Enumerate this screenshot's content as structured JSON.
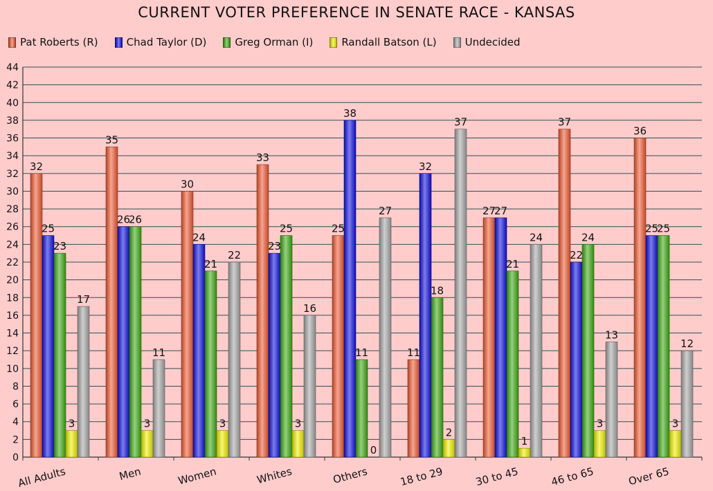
{
  "chart_data": {
    "type": "bar",
    "title": "CURRENT VOTER PREFERENCE IN SENATE RACE - KANSAS",
    "xlabel": "",
    "ylabel": "",
    "ylim": [
      0,
      44
    ],
    "yticks": [
      0,
      2,
      4,
      6,
      8,
      10,
      12,
      14,
      16,
      18,
      20,
      22,
      24,
      26,
      28,
      30,
      32,
      34,
      36,
      38,
      40,
      42,
      44
    ],
    "grid": true,
    "legend_position": "top",
    "categories": [
      "All Adults",
      "Men",
      "Women",
      "Whites",
      "Others",
      "18 to 29",
      "30 to 45",
      "46 to 65",
      "Over 65"
    ],
    "series": [
      {
        "name": "Pat Roberts (R)",
        "color": "#f05a32",
        "values": [
          32,
          35,
          30,
          33,
          25,
          11,
          27,
          37,
          36
        ]
      },
      {
        "name": "Chad Taylor (D)",
        "color": "#1010e0",
        "values": [
          25,
          26,
          24,
          23,
          38,
          32,
          27,
          22,
          25
        ]
      },
      {
        "name": "Greg Orman (I)",
        "color": "#3faa14",
        "values": [
          23,
          26,
          21,
          25,
          11,
          18,
          21,
          24,
          25
        ]
      },
      {
        "name": "Randall Batson (L)",
        "color": "#f0f000",
        "values": [
          3,
          3,
          3,
          3,
          0,
          2,
          1,
          3,
          3
        ]
      },
      {
        "name": "Undecided",
        "color": "#a8a8a8",
        "values": [
          17,
          11,
          22,
          16,
          27,
          37,
          24,
          13,
          12
        ]
      }
    ]
  }
}
